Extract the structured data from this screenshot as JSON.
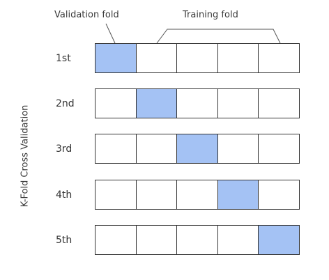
{
  "labels": {
    "validation_fold": "Validation fold",
    "training_fold": "Training fold",
    "y_axis": "K-Fold Cross Validation"
  },
  "colors": {
    "validation": "#a4c2f4",
    "training": "#ffffff",
    "border": "#333333"
  },
  "folds_per_row": 5,
  "rows": [
    {
      "label": "1st",
      "validation_index": 0
    },
    {
      "label": "2nd",
      "validation_index": 1
    },
    {
      "label": "3rd",
      "validation_index": 2
    },
    {
      "label": "4th",
      "validation_index": 3
    },
    {
      "label": "5th",
      "validation_index": 4
    }
  ]
}
